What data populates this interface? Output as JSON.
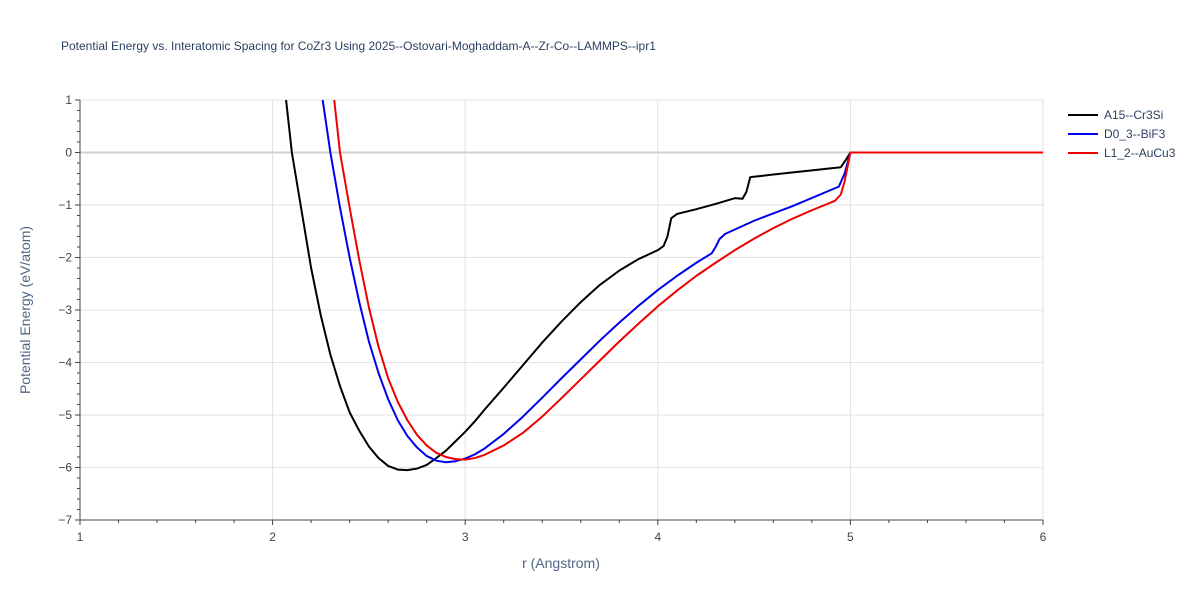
{
  "chart_data": {
    "type": "line",
    "title": "Potential Energy vs. Interatomic Spacing for CoZr3 Using 2025--Ostovari-Moghaddam-A--Zr-Co--LAMMPS--ipr1",
    "xlabel": "r (Angstrom)",
    "ylabel": "Potential Energy (eV/atom)",
    "xlim": [
      1,
      6
    ],
    "ylim": [
      -7,
      1
    ],
    "xticks": [
      1,
      2,
      3,
      4,
      5,
      6
    ],
    "yticks": [
      1,
      0,
      -1,
      -2,
      -3,
      -4,
      -5,
      -6,
      -7
    ],
    "ytick_labels": [
      "1",
      "0",
      "−1",
      "−2",
      "−3",
      "−4",
      "−5",
      "−6",
      "−7"
    ],
    "grid": true,
    "legend": "top-right",
    "series": [
      {
        "name": "A15--Cr3Si",
        "color": "#000000",
        "points": [
          [
            2.07,
            1.0
          ],
          [
            2.1,
            0.0
          ],
          [
            2.15,
            -1.1
          ],
          [
            2.2,
            -2.2
          ],
          [
            2.25,
            -3.1
          ],
          [
            2.3,
            -3.85
          ],
          [
            2.35,
            -4.45
          ],
          [
            2.4,
            -4.95
          ],
          [
            2.45,
            -5.3
          ],
          [
            2.5,
            -5.6
          ],
          [
            2.55,
            -5.82
          ],
          [
            2.6,
            -5.97
          ],
          [
            2.65,
            -6.04
          ],
          [
            2.7,
            -6.05
          ],
          [
            2.75,
            -6.02
          ],
          [
            2.8,
            -5.95
          ],
          [
            2.85,
            -5.82
          ],
          [
            2.9,
            -5.68
          ],
          [
            2.95,
            -5.5
          ],
          [
            3.0,
            -5.32
          ],
          [
            3.05,
            -5.12
          ],
          [
            3.1,
            -4.9
          ],
          [
            3.2,
            -4.48
          ],
          [
            3.3,
            -4.05
          ],
          [
            3.4,
            -3.62
          ],
          [
            3.5,
            -3.22
          ],
          [
            3.6,
            -2.85
          ],
          [
            3.7,
            -2.52
          ],
          [
            3.8,
            -2.25
          ],
          [
            3.9,
            -2.03
          ],
          [
            4.0,
            -1.86
          ],
          [
            4.03,
            -1.78
          ],
          [
            4.05,
            -1.6
          ],
          [
            4.07,
            -1.25
          ],
          [
            4.1,
            -1.17
          ],
          [
            4.2,
            -1.08
          ],
          [
            4.3,
            -0.98
          ],
          [
            4.4,
            -0.87
          ],
          [
            4.44,
            -0.88
          ],
          [
            4.46,
            -0.75
          ],
          [
            4.48,
            -0.47
          ],
          [
            4.6,
            -0.42
          ],
          [
            4.8,
            -0.34
          ],
          [
            4.95,
            -0.28
          ],
          [
            4.98,
            -0.12
          ],
          [
            5.0,
            0.0
          ],
          [
            6.0,
            0.0
          ]
        ]
      },
      {
        "name": "D0_3--BiF3",
        "color": "#0000ee",
        "points": [
          [
            2.26,
            1.0
          ],
          [
            2.3,
            0.0
          ],
          [
            2.35,
            -1.05
          ],
          [
            2.4,
            -2.0
          ],
          [
            2.45,
            -2.85
          ],
          [
            2.5,
            -3.6
          ],
          [
            2.55,
            -4.2
          ],
          [
            2.6,
            -4.7
          ],
          [
            2.65,
            -5.1
          ],
          [
            2.7,
            -5.4
          ],
          [
            2.75,
            -5.62
          ],
          [
            2.8,
            -5.78
          ],
          [
            2.85,
            -5.87
          ],
          [
            2.9,
            -5.9
          ],
          [
            2.95,
            -5.88
          ],
          [
            3.0,
            -5.83
          ],
          [
            3.05,
            -5.75
          ],
          [
            3.1,
            -5.64
          ],
          [
            3.2,
            -5.36
          ],
          [
            3.3,
            -5.03
          ],
          [
            3.4,
            -4.67
          ],
          [
            3.5,
            -4.3
          ],
          [
            3.6,
            -3.94
          ],
          [
            3.7,
            -3.58
          ],
          [
            3.8,
            -3.24
          ],
          [
            3.9,
            -2.92
          ],
          [
            4.0,
            -2.62
          ],
          [
            4.1,
            -2.35
          ],
          [
            4.2,
            -2.1
          ],
          [
            4.28,
            -1.92
          ],
          [
            4.3,
            -1.8
          ],
          [
            4.32,
            -1.65
          ],
          [
            4.35,
            -1.55
          ],
          [
            4.5,
            -1.3
          ],
          [
            4.7,
            -1.02
          ],
          [
            4.94,
            -0.65
          ],
          [
            4.97,
            -0.4
          ],
          [
            5.0,
            0.0
          ],
          [
            6.0,
            0.0
          ]
        ]
      },
      {
        "name": "L1_2--AuCu3",
        "color": "#ee0000",
        "points": [
          [
            2.32,
            1.0
          ],
          [
            2.35,
            0.0
          ],
          [
            2.4,
            -1.05
          ],
          [
            2.45,
            -2.05
          ],
          [
            2.5,
            -2.95
          ],
          [
            2.55,
            -3.7
          ],
          [
            2.6,
            -4.3
          ],
          [
            2.65,
            -4.75
          ],
          [
            2.7,
            -5.1
          ],
          [
            2.75,
            -5.38
          ],
          [
            2.8,
            -5.58
          ],
          [
            2.85,
            -5.72
          ],
          [
            2.9,
            -5.8
          ],
          [
            2.95,
            -5.84
          ],
          [
            3.0,
            -5.85
          ],
          [
            3.05,
            -5.82
          ],
          [
            3.1,
            -5.76
          ],
          [
            3.2,
            -5.58
          ],
          [
            3.3,
            -5.34
          ],
          [
            3.4,
            -5.03
          ],
          [
            3.5,
            -4.68
          ],
          [
            3.6,
            -4.32
          ],
          [
            3.7,
            -3.96
          ],
          [
            3.8,
            -3.6
          ],
          [
            3.9,
            -3.26
          ],
          [
            4.0,
            -2.93
          ],
          [
            4.1,
            -2.63
          ],
          [
            4.2,
            -2.35
          ],
          [
            4.3,
            -2.1
          ],
          [
            4.4,
            -1.86
          ],
          [
            4.5,
            -1.64
          ],
          [
            4.6,
            -1.44
          ],
          [
            4.7,
            -1.26
          ],
          [
            4.8,
            -1.1
          ],
          [
            4.92,
            -0.92
          ],
          [
            4.95,
            -0.8
          ],
          [
            4.97,
            -0.55
          ],
          [
            5.0,
            0.0
          ],
          [
            6.0,
            0.0
          ]
        ]
      }
    ]
  }
}
